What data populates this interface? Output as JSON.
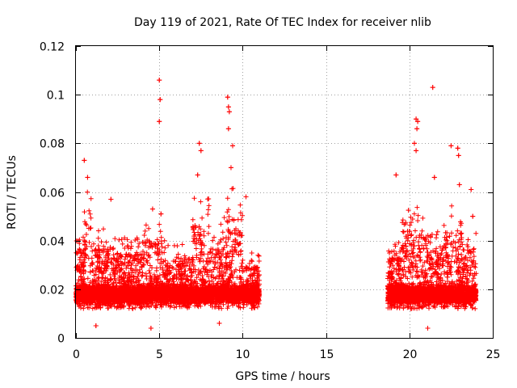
{
  "chart_data": {
    "type": "scatter",
    "title": "Day 119 of 2021, Rate Of TEC Index for receiver nlib",
    "xlabel": "GPS time / hours",
    "ylabel": "ROTI / TECUs",
    "xlim": [
      0,
      25
    ],
    "ylim": [
      0,
      0.12
    ],
    "xticks": [
      0,
      5,
      10,
      15,
      20,
      25
    ],
    "xtick_labels": [
      "0",
      "5",
      "10",
      "15",
      "20",
      "25"
    ],
    "yticks": [
      0,
      0.02,
      0.04,
      0.06,
      0.08,
      0.1,
      0.12
    ],
    "ytick_labels": [
      "0",
      "0.02",
      "0.04",
      "0.06",
      "0.08",
      "0.1",
      "0.12"
    ],
    "grid": true,
    "marker": "+",
    "color": "#ff0000",
    "series": [
      {
        "name": "ROTI",
        "coverage_hours": [
          [
            0.0,
            11.0
          ],
          [
            18.7,
            24.0
          ]
        ],
        "typical_range": [
          0.01,
          0.03
        ],
        "notable_points": [
          {
            "x": 0.5,
            "y": 0.073
          },
          {
            "x": 0.7,
            "y": 0.066
          },
          {
            "x": 2.1,
            "y": 0.057
          },
          {
            "x": 4.6,
            "y": 0.053
          },
          {
            "x": 5.0,
            "y": 0.106
          },
          {
            "x": 5.05,
            "y": 0.098
          },
          {
            "x": 5.0,
            "y": 0.089
          },
          {
            "x": 5.1,
            "y": 0.051
          },
          {
            "x": 7.4,
            "y": 0.08
          },
          {
            "x": 7.5,
            "y": 0.077
          },
          {
            "x": 7.3,
            "y": 0.067
          },
          {
            "x": 9.1,
            "y": 0.099
          },
          {
            "x": 9.15,
            "y": 0.095
          },
          {
            "x": 9.2,
            "y": 0.093
          },
          {
            "x": 9.15,
            "y": 0.086
          },
          {
            "x": 9.4,
            "y": 0.079
          },
          {
            "x": 9.3,
            "y": 0.07
          },
          {
            "x": 10.2,
            "y": 0.058
          },
          {
            "x": 19.2,
            "y": 0.067
          },
          {
            "x": 20.4,
            "y": 0.09
          },
          {
            "x": 20.5,
            "y": 0.089
          },
          {
            "x": 20.45,
            "y": 0.086
          },
          {
            "x": 20.3,
            "y": 0.08
          },
          {
            "x": 20.4,
            "y": 0.077
          },
          {
            "x": 21.4,
            "y": 0.103
          },
          {
            "x": 21.5,
            "y": 0.066
          },
          {
            "x": 22.5,
            "y": 0.079
          },
          {
            "x": 22.9,
            "y": 0.078
          },
          {
            "x": 22.95,
            "y": 0.075
          },
          {
            "x": 23.0,
            "y": 0.063
          },
          {
            "x": 23.7,
            "y": 0.061
          },
          {
            "x": 23.8,
            "y": 0.05
          },
          {
            "x": 1.2,
            "y": 0.005
          },
          {
            "x": 4.5,
            "y": 0.004
          },
          {
            "x": 8.6,
            "y": 0.006
          },
          {
            "x": 21.1,
            "y": 0.004
          }
        ]
      }
    ]
  }
}
